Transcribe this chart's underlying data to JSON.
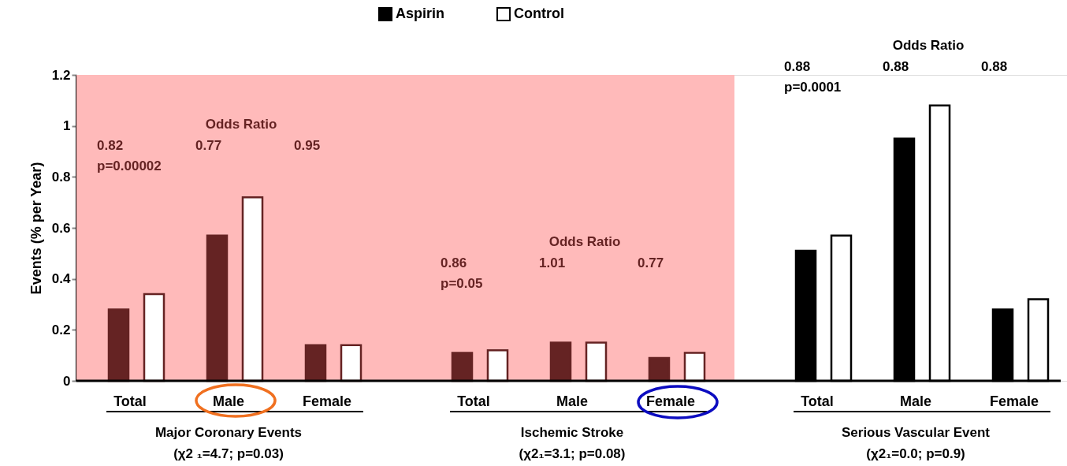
{
  "chart_data": {
    "type": "bar",
    "ylabel": "Events (% per Year)",
    "categories": [
      "Total",
      "Male",
      "Female",
      "Total",
      "Male",
      "Female",
      "Total",
      "Male",
      "Female"
    ],
    "series": [
      {
        "name": "Aspirin",
        "color": "#000000",
        "colors": [
          "#652323",
          "#652323",
          "#652323",
          "#652323",
          "#652323",
          "#652323",
          "#000000",
          "#000000",
          "#000000"
        ],
        "values": [
          0.28,
          0.57,
          0.14,
          0.11,
          0.15,
          0.09,
          0.51,
          0.95,
          0.28
        ]
      },
      {
        "name": "Control",
        "color": "#ffffff",
        "colors": [
          "#ffffff",
          "#ffffff",
          "#ffffff",
          "#ffffff",
          "#ffffff",
          "#ffffff",
          "#ffffff",
          "#ffffff",
          "#ffffff"
        ],
        "values": [
          0.34,
          0.72,
          0.14,
          0.12,
          0.15,
          0.11,
          0.57,
          1.08,
          0.32
        ]
      }
    ],
    "ylim": [
      0,
      1.2
    ],
    "yticks": [
      0,
      0.2,
      0.4,
      0.6,
      0.8,
      1,
      1.2
    ],
    "bands": [
      {
        "axis": "y",
        "from": 0,
        "to": 1.2,
        "color": "#ffbaba"
      }
    ],
    "legend": "top",
    "grid": false,
    "annotations": [
      "Odds Ratio",
      "0.82",
      "p=0.00002",
      "0.77",
      "0.95",
      "Odds Ratio",
      "0.86",
      "p=0.05",
      "1.01",
      "0.77",
      "Odds Ratio",
      "0.88",
      "p=0.0001",
      "0.88",
      "0.88",
      "Major Coronary Events",
      "(χ2 ₁=4.7; p=0.03)",
      "Ischemic Stroke",
      "(χ2₁=3.1; p=0.08)",
      "Serious Vascular Event",
      "(χ2₁=0.0; p=0.9)"
    ]
  }
}
